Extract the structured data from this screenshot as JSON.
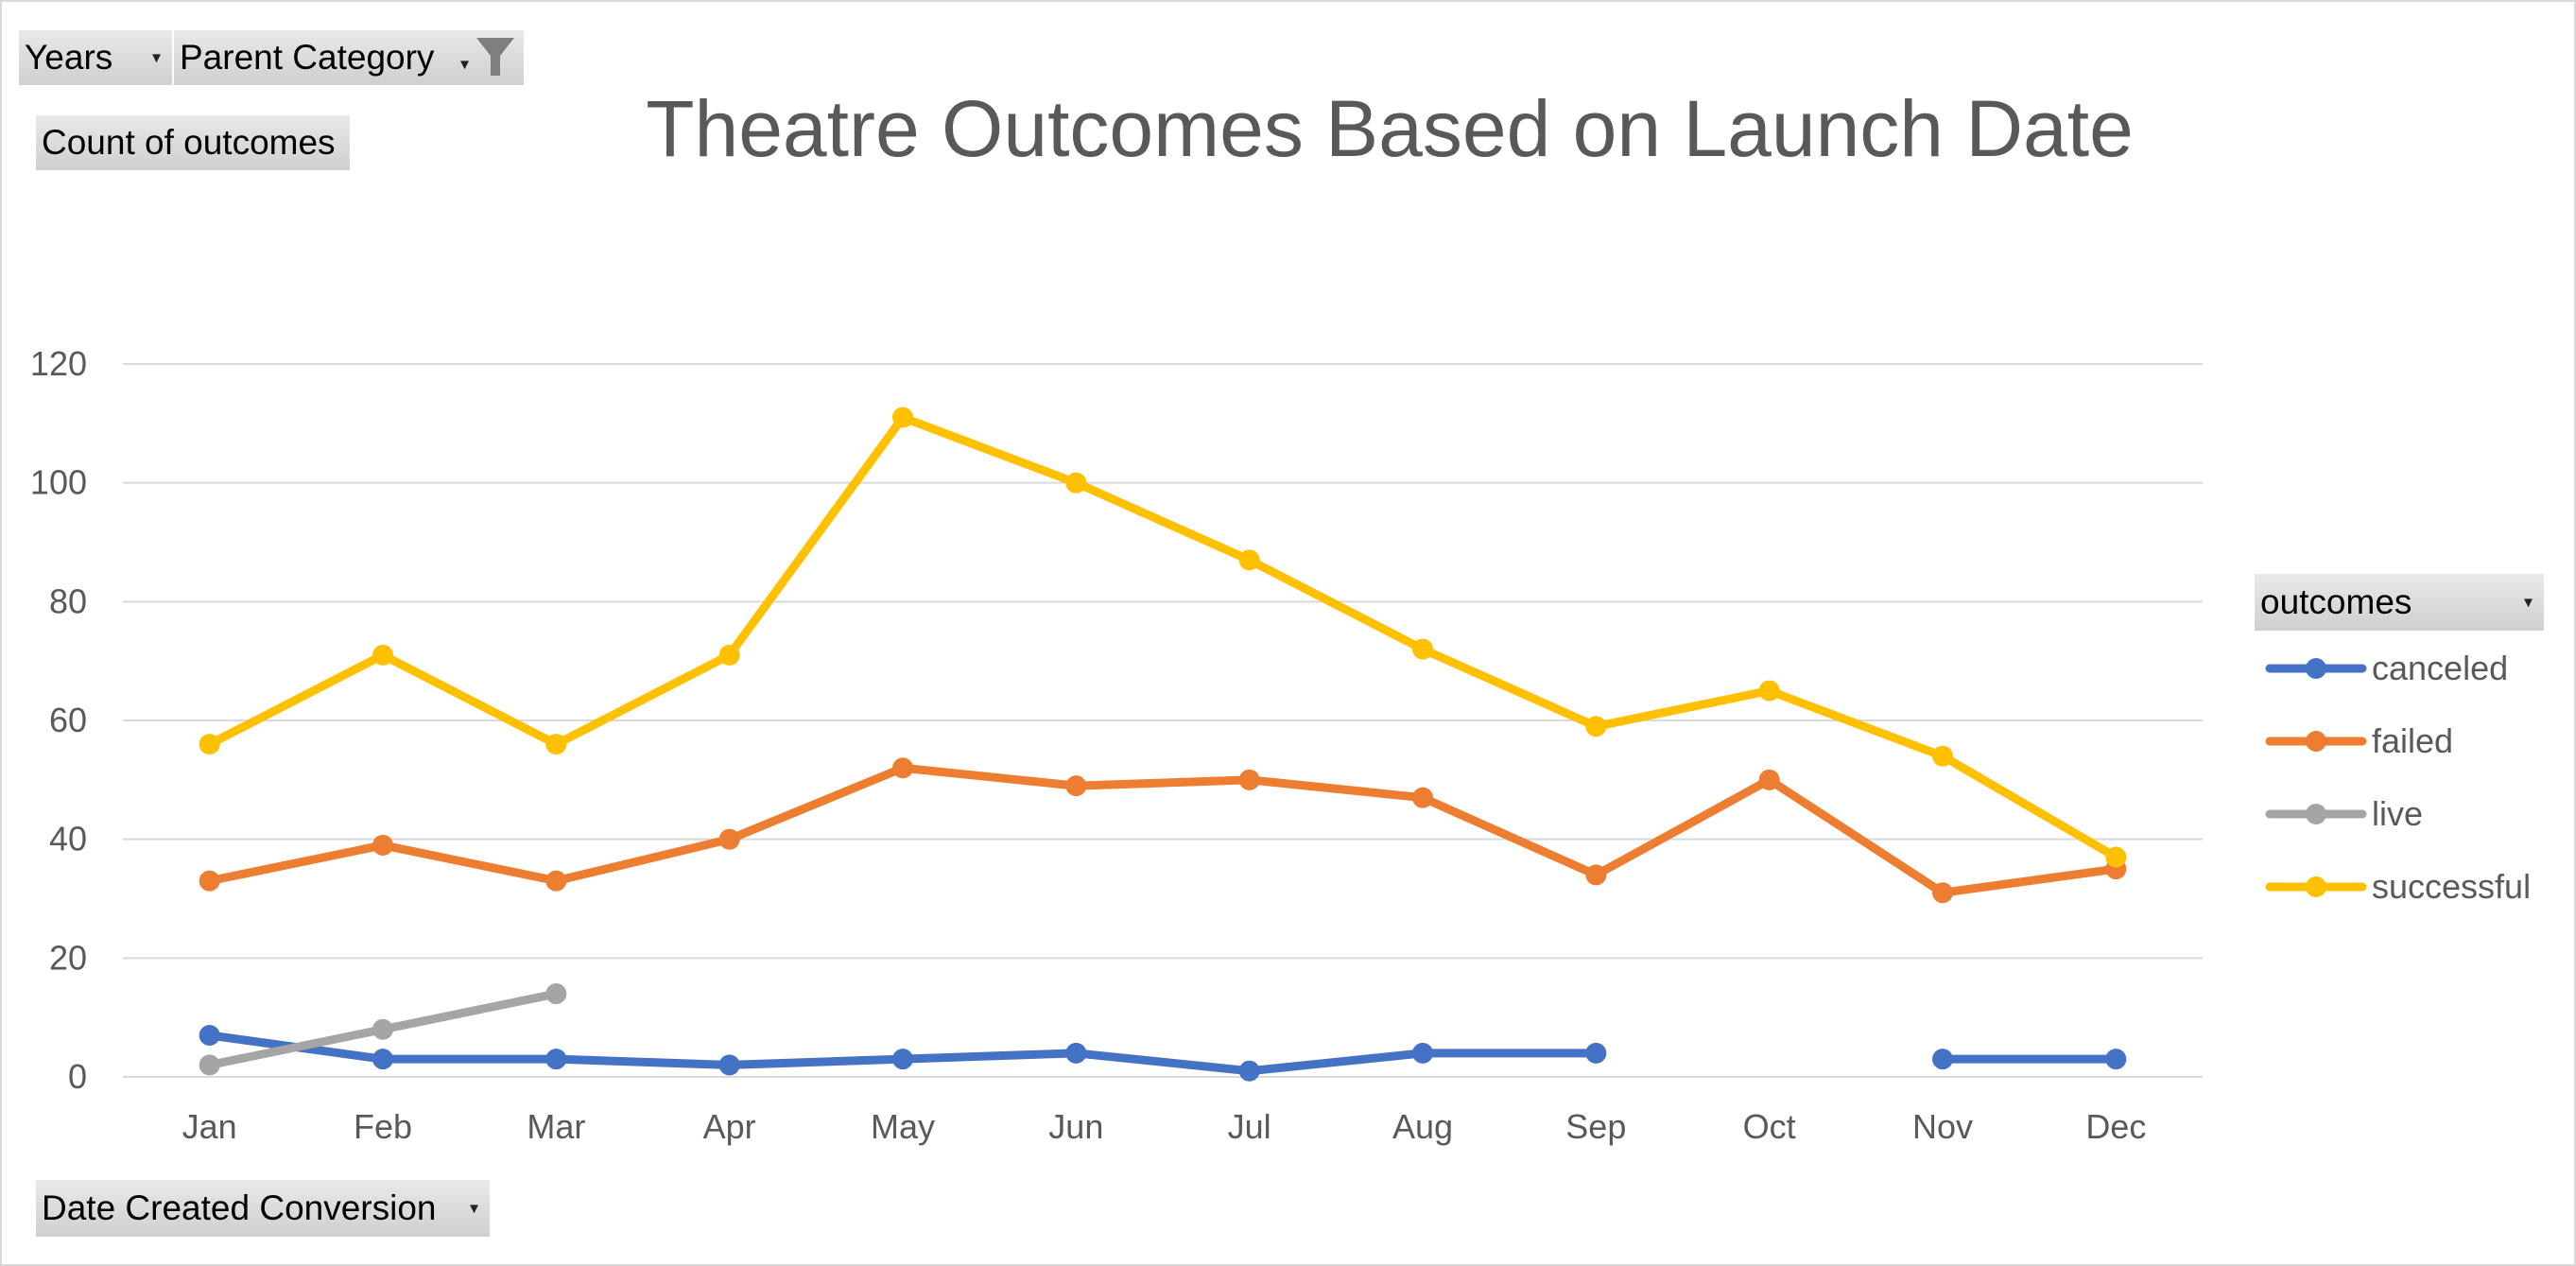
{
  "filters": {
    "years_label": "Years",
    "parent_category_label": "Parent Category",
    "values_label": "Count of outcomes",
    "axis_field_label": "Date Created Conversion",
    "legend_field_label": "outcomes"
  },
  "icons": {
    "dropdown": "dropdown-arrow-icon",
    "filter": "funnel-filter-icon"
  },
  "chart_data": {
    "type": "line",
    "title": "Theatre Outcomes Based on Launch Date",
    "xlabel": "",
    "ylabel": "",
    "categories": [
      "Jan",
      "Feb",
      "Mar",
      "Apr",
      "May",
      "Jun",
      "Jul",
      "Aug",
      "Sep",
      "Oct",
      "Nov",
      "Dec"
    ],
    "ylim": [
      0,
      120
    ],
    "yticks": [
      0,
      20,
      40,
      60,
      80,
      100,
      120
    ],
    "grid": true,
    "legend_position": "right",
    "series": [
      {
        "name": "canceled",
        "color": "#4472C4",
        "values": [
          7,
          3,
          3,
          2,
          3,
          4,
          1,
          4,
          4,
          null,
          3,
          3
        ]
      },
      {
        "name": "failed",
        "color": "#ED7D31",
        "values": [
          33,
          39,
          33,
          40,
          52,
          49,
          50,
          47,
          34,
          50,
          31,
          35
        ]
      },
      {
        "name": "live",
        "color": "#A5A5A5",
        "values": [
          2,
          8,
          14,
          null,
          null,
          null,
          null,
          null,
          null,
          null,
          null,
          null
        ]
      },
      {
        "name": "successful",
        "color": "#FFC000",
        "values": [
          56,
          71,
          56,
          71,
          111,
          100,
          87,
          72,
          59,
          65,
          54,
          37
        ]
      }
    ]
  }
}
